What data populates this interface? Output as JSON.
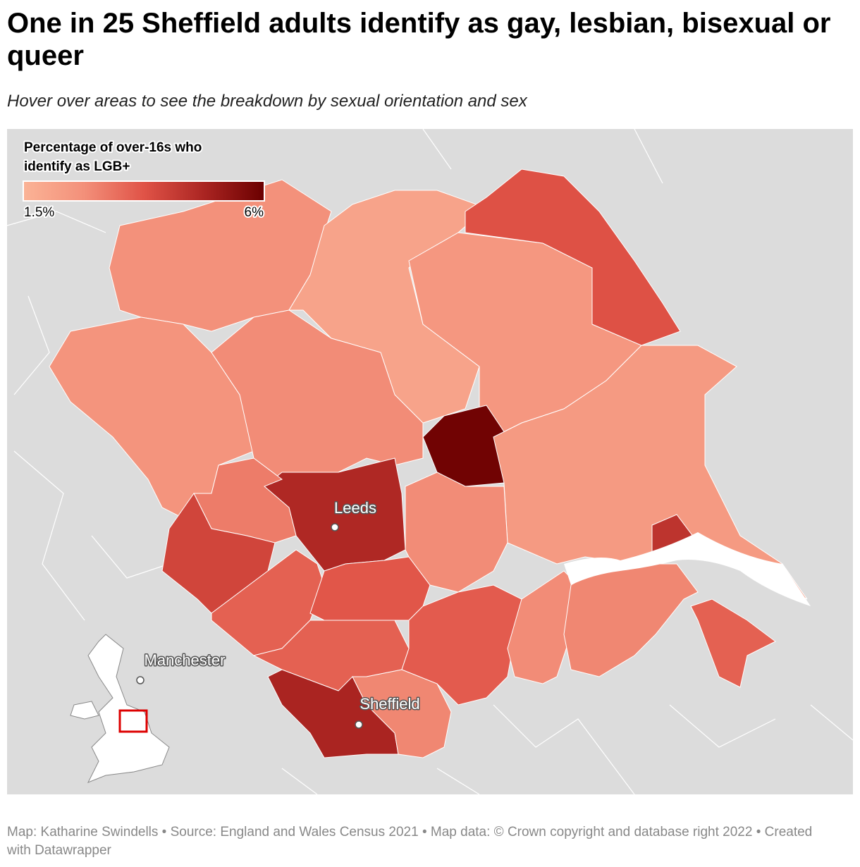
{
  "title": "One in 25 Sheffield adults identify as gay, lesbian, bisexual or queer",
  "subtitle": "Hover over areas to see the breakdown by sexual orientation and sex",
  "legend": {
    "title": "Percentage of over-16s who identify as LGB+",
    "min": {
      "value": 1.5,
      "label": "1.5%"
    },
    "max": {
      "value": 6,
      "label": "6%"
    },
    "colors": [
      "#fbb396",
      "#f3907a",
      "#e05347",
      "#ab2522",
      "#6b0000"
    ]
  },
  "regions": [
    {
      "value": 2.6
    },
    {
      "value": 2.0
    },
    {
      "value": 2.4
    },
    {
      "value": 3.8
    },
    {
      "value": 2.5
    },
    {
      "value": 2.7
    },
    {
      "value": 5.9
    },
    {
      "value": 2.3
    },
    {
      "value": 4.5
    },
    {
      "value": 4.8
    },
    {
      "value": 3.0
    },
    {
      "value": 4.1
    },
    {
      "value": 3.5
    },
    {
      "value": 3.7
    },
    {
      "value": 2.7
    },
    {
      "value": 3.5
    },
    {
      "value": 3.6
    },
    {
      "value": 4.9
    },
    {
      "value": 2.8
    },
    {
      "value": 2.7
    },
    {
      "value": 2.8
    },
    {
      "value": 3.5
    }
  ],
  "cities": [
    {
      "name": "Leeds"
    },
    {
      "name": "Sheffield"
    },
    {
      "name": "Manchester"
    }
  ],
  "footer": "Map: Katharine Swindells • Source: England and Wales Census 2021 • Map data: © Crown copyright and database right 2022  • Created with Datawrapper"
}
